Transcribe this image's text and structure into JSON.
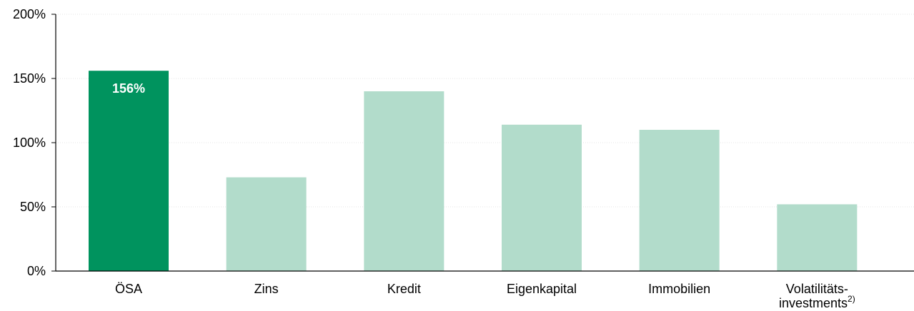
{
  "chart_data": {
    "type": "bar",
    "categories": [
      "ÖSA",
      "Zins",
      "Kredit",
      "Eigenkapital",
      "Immobilien",
      "Volatilitäts-\ninvestments"
    ],
    "category_superscripts": [
      "",
      "",
      "",
      "",
      "",
      "2)"
    ],
    "values": [
      156,
      73,
      140,
      114,
      110,
      52
    ],
    "data_labels": [
      "156%",
      "",
      "",
      "",
      "",
      ""
    ],
    "highlight_index": 0,
    "ylim": [
      0,
      200
    ],
    "yticks": [
      0,
      50,
      100,
      150,
      200
    ],
    "ytick_labels": [
      "0%",
      "50%",
      "100%",
      "150%",
      "200%"
    ],
    "grid": true,
    "colors": {
      "highlight": "#00935e",
      "default": "#b2dccb",
      "axis": "#000000",
      "grid": "#e6e6e6"
    }
  }
}
